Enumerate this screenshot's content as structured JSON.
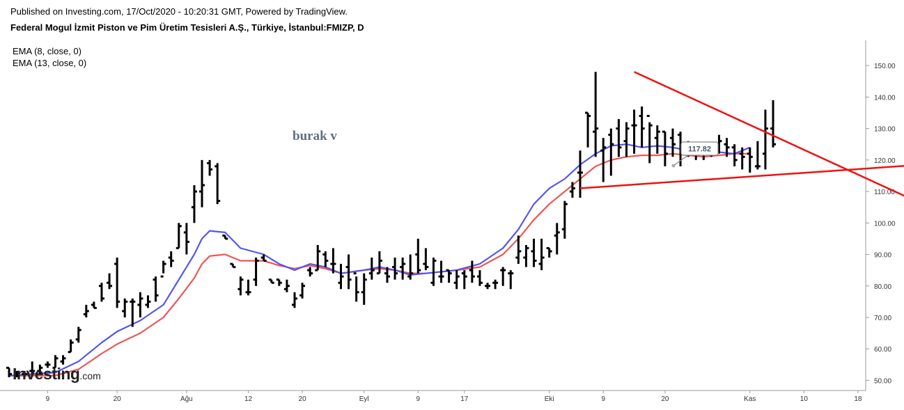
{
  "header": {
    "published": "Published on Investing.com, 17/Oct/2020 - 10:20:31 GMT, Powered by TradingView.",
    "symbol_title": "Federal Mogul İzmit Piston ve Pim Üretim Tesisleri A.Ş., Türkiye, İstanbul:FMIZP, D"
  },
  "legend": {
    "ema8": "EMA (8, close, 0)",
    "ema13": "EMA (13, close, 0)"
  },
  "annotation_text": "burak v",
  "watermark": {
    "brand": "Investing",
    "suffix": ".com"
  },
  "colors": {
    "bars": "#000000",
    "ema8": "#5555ee",
    "ema13": "#ee5555",
    "trendlines": "#ee1111",
    "axis_text": "#333333",
    "price_label_border": "#888888"
  },
  "chart_data": {
    "type": "ohlc",
    "title": "Federal Mogul İzmit Piston ve Pim Üretim Tesisleri A.Ş., Türkiye, İstanbul:FMIZP, D",
    "y_axis": {
      "ticks": [
        50,
        60,
        70,
        80,
        90,
        100,
        110,
        120,
        130,
        140,
        150
      ],
      "tick_labels": [
        "50.00",
        "60.00",
        "70.00",
        "80.00",
        "90.00",
        "100.00",
        "110.00",
        "120.00",
        "130.00",
        "140.00",
        "150.00"
      ],
      "ylim": [
        47,
        158
      ],
      "position": "right"
    },
    "x_axis": {
      "tick_labels": [
        {
          "label": "9",
          "index": 5
        },
        {
          "label": "20",
          "index": 14
        },
        {
          "label": "Ağu",
          "index": 23
        },
        {
          "label": "12",
          "index": 31
        },
        {
          "label": "20",
          "index": 38
        },
        {
          "label": "Eyl",
          "index": 46
        },
        {
          "label": "9",
          "index": 53
        },
        {
          "label": "17",
          "index": 59
        },
        {
          "label": "Eki",
          "index": 70
        },
        {
          "label": "9",
          "index": 77
        },
        {
          "label": "20",
          "index": 85
        },
        {
          "label": "Kas",
          "index": 96
        },
        {
          "label": "10",
          "index": 103
        },
        {
          "label": "18",
          "index": 110
        }
      ],
      "xlim": [
        0,
        111
      ]
    },
    "series": [
      {
        "name": "FMIZP",
        "kind": "ohlc",
        "ohlc": [
          [
            54,
            54,
            51,
            52
          ],
          [
            52,
            53,
            51,
            52
          ],
          [
            52,
            53,
            51,
            52
          ],
          [
            53,
            56,
            52,
            53
          ],
          [
            53,
            55,
            52,
            54
          ],
          [
            55,
            56,
            54,
            55
          ],
          [
            54,
            58,
            54,
            57
          ],
          [
            56,
            58,
            55,
            57
          ],
          [
            59,
            63,
            59,
            62
          ],
          [
            63,
            67,
            62,
            66
          ],
          [
            71,
            74,
            70,
            72
          ],
          [
            74,
            75,
            73,
            73
          ],
          [
            80,
            81,
            75,
            76
          ],
          [
            81,
            84,
            79,
            80
          ],
          [
            87,
            89,
            73,
            75
          ],
          [
            72,
            76,
            70,
            75
          ],
          [
            75,
            76,
            67,
            75
          ],
          [
            74,
            78,
            70,
            76
          ],
          [
            74,
            77,
            73,
            75
          ],
          [
            82,
            83,
            75,
            77
          ],
          [
            83,
            88,
            84,
            87
          ],
          [
            89,
            91,
            86,
            88
          ],
          [
            92,
            100,
            92,
            99
          ],
          [
            97,
            100,
            90,
            94
          ],
          [
            105,
            112,
            100,
            110
          ],
          [
            110,
            120,
            105,
            112
          ],
          [
            119,
            120,
            115,
            117
          ],
          [
            118,
            119,
            106,
            107
          ],
          [
            96,
            96,
            95,
            95
          ],
          [
            87,
            87,
            86,
            86
          ],
          [
            79,
            83,
            77,
            82
          ],
          [
            78,
            82,
            77,
            78
          ],
          [
            82,
            89,
            80,
            88
          ],
          [
            89,
            90,
            88,
            88
          ],
          [
            82,
            82,
            81,
            81
          ],
          [
            82,
            82,
            80,
            81
          ],
          [
            79,
            82,
            78,
            80
          ],
          [
            74,
            78,
            73,
            76
          ],
          [
            77,
            81,
            76,
            80
          ],
          [
            85,
            86,
            83,
            84
          ],
          [
            85,
            93,
            85,
            91
          ],
          [
            90,
            91,
            86,
            88
          ],
          [
            87,
            92,
            84,
            87
          ],
          [
            81,
            87,
            79,
            83
          ],
          [
            86,
            90,
            79,
            82
          ],
          [
            84,
            83,
            75,
            78
          ],
          [
            78,
            84,
            74,
            82
          ],
          [
            84,
            89,
            82,
            85
          ],
          [
            84,
            91,
            84,
            88
          ],
          [
            84,
            86,
            81,
            83
          ],
          [
            86,
            89,
            82,
            84
          ],
          [
            86,
            89,
            82,
            87
          ],
          [
            83,
            90,
            82,
            84
          ],
          [
            90,
            95,
            84,
            85
          ],
          [
            87,
            92,
            85,
            86
          ],
          [
            81,
            89,
            80,
            88
          ],
          [
            83,
            88,
            81,
            83
          ],
          [
            85,
            85,
            81,
            84
          ],
          [
            81,
            85,
            79,
            83
          ],
          [
            84,
            85,
            79,
            83
          ],
          [
            85,
            88,
            81,
            83
          ],
          [
            83,
            85,
            80,
            81
          ],
          [
            80,
            81,
            79,
            80
          ],
          [
            81,
            82,
            79,
            81
          ]
        ],
        "ohlc_tail": [
          [
            85,
            86,
            80,
            85
          ],
          [
            84,
            85,
            79,
            84
          ],
          [
            89,
            96,
            87,
            91
          ],
          [
            89,
            93,
            86,
            92
          ],
          [
            91,
            95,
            86,
            88
          ],
          [
            87,
            95,
            85,
            89
          ],
          [
            92,
            92,
            89,
            91
          ],
          [
            96,
            100,
            90,
            97
          ],
          [
            98,
            107,
            95,
            106
          ],
          [
            110,
            113,
            108,
            111
          ],
          [
            116,
            123,
            108,
            116
          ],
          [
            135,
            135,
            124,
            134
          ],
          [
            129,
            148,
            121,
            130
          ],
          [
            123,
            127,
            113,
            124
          ],
          [
            128,
            130,
            115,
            125
          ],
          [
            130,
            133,
            121,
            124
          ],
          [
            126,
            132,
            121,
            130
          ],
          [
            131,
            136,
            122,
            131
          ],
          [
            134,
            137,
            124,
            130
          ],
          [
            134,
            132,
            119,
            131
          ],
          [
            127,
            131,
            122,
            129
          ],
          [
            129,
            129,
            118,
            122
          ],
          [
            127,
            130,
            121,
            125
          ],
          [
            128,
            129,
            118,
            124
          ],
          [
            124,
            126,
            121,
            122
          ],
          [
            124,
            125,
            120,
            123
          ],
          [
            122,
            124,
            120,
            122
          ],
          [
            123,
            125,
            121,
            123
          ],
          [
            124,
            128,
            122,
            126
          ],
          [
            125,
            127,
            121,
            124
          ],
          [
            124,
            125,
            118,
            120
          ],
          [
            122,
            124,
            117,
            121
          ],
          [
            122,
            124,
            116,
            121
          ],
          [
            118,
            126,
            117,
            118
          ],
          [
            122,
            136,
            117,
            130
          ],
          [
            130,
            139,
            124,
            125
          ]
        ]
      },
      {
        "name": "EMA (8, close, 0)",
        "kind": "line",
        "points": [
          [
            0,
            51.5
          ],
          [
            6,
            52.5
          ],
          [
            9,
            56
          ],
          [
            12,
            62
          ],
          [
            14,
            65.5
          ],
          [
            17,
            69
          ],
          [
            20,
            74
          ],
          [
            22,
            82
          ],
          [
            24,
            90
          ],
          [
            25,
            95
          ],
          [
            26,
            97.5
          ],
          [
            28,
            97
          ],
          [
            30,
            92
          ],
          [
            33,
            90
          ],
          [
            35,
            87
          ],
          [
            37,
            85
          ],
          [
            39,
            87
          ],
          [
            41,
            86
          ],
          [
            43,
            84
          ],
          [
            46,
            85
          ],
          [
            48,
            86
          ],
          [
            50,
            85
          ],
          [
            52,
            83.5
          ],
          [
            54,
            84
          ],
          [
            56,
            84.5
          ],
          [
            58,
            85
          ],
          [
            61,
            87
          ],
          [
            64,
            92
          ],
          [
            66,
            98
          ],
          [
            68,
            106
          ],
          [
            70,
            111
          ],
          [
            72,
            114
          ],
          [
            74,
            118.5
          ],
          [
            76,
            122
          ],
          [
            78,
            124.5
          ],
          [
            80,
            125
          ],
          [
            82,
            124
          ],
          [
            84,
            124.5
          ],
          [
            86,
            124
          ],
          [
            88,
            123
          ],
          [
            90,
            122
          ],
          [
            92,
            122.5
          ],
          [
            94,
            122
          ],
          [
            96,
            124
          ]
        ]
      },
      {
        "name": "EMA (13, close, 0)",
        "kind": "line",
        "points": [
          [
            0,
            51.5
          ],
          [
            6,
            51.5
          ],
          [
            9,
            53.5
          ],
          [
            12,
            58.5
          ],
          [
            14,
            61.5
          ],
          [
            17,
            65
          ],
          [
            20,
            70
          ],
          [
            22,
            76
          ],
          [
            24,
            82.5
          ],
          [
            25,
            87
          ],
          [
            26,
            89.5
          ],
          [
            28,
            90
          ],
          [
            30,
            88
          ],
          [
            33,
            88
          ],
          [
            35,
            86.5
          ],
          [
            37,
            85.5
          ],
          [
            39,
            86.5
          ],
          [
            41,
            85.5
          ],
          [
            43,
            84
          ],
          [
            46,
            85
          ],
          [
            48,
            85.5
          ],
          [
            50,
            85
          ],
          [
            52,
            84
          ],
          [
            54,
            84
          ],
          [
            56,
            84.5
          ],
          [
            58,
            85
          ],
          [
            61,
            86
          ],
          [
            64,
            90
          ],
          [
            66,
            95
          ],
          [
            68,
            101
          ],
          [
            70,
            106
          ],
          [
            72,
            110
          ],
          [
            74,
            114
          ],
          [
            76,
            118
          ],
          [
            78,
            120
          ],
          [
            80,
            121
          ],
          [
            82,
            121.5
          ],
          [
            84,
            121.5
          ],
          [
            86,
            122
          ],
          [
            88,
            121.5
          ],
          [
            90,
            121
          ],
          [
            92,
            121.5
          ],
          [
            94,
            122
          ],
          [
            96,
            122
          ]
        ]
      }
    ],
    "drawings": {
      "price_label": "117.82",
      "upper_trendline": {
        "from": {
          "index": 81,
          "price": 148
        },
        "to": {
          "index": 121,
          "price": 103
        }
      },
      "lower_trendline": {
        "from": {
          "index": 74,
          "price": 111
        },
        "to": {
          "index": 127,
          "price": 120
        }
      }
    },
    "grid": false,
    "legend_position": "top-left"
  }
}
